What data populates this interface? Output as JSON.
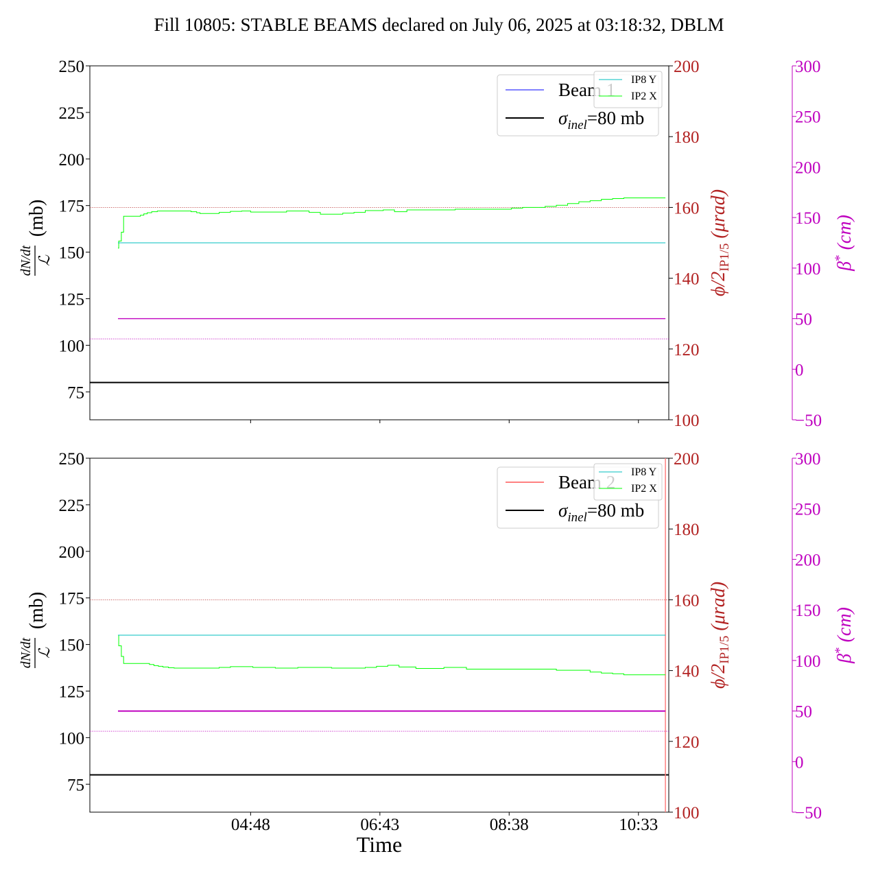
{
  "title": "Fill 10805: STABLE BEAMS declared on July 06, 2025 at 03:18:32, DBLM",
  "colors": {
    "beam1": "#0000ff",
    "beam2": "#ff0000",
    "sigma_line": "#000000",
    "ip8_y": "#00bfbf",
    "ip2_x": "#00ff00",
    "crossing_angle": "#b22222",
    "beta_star": "#bf00bf",
    "beam_dump_marker": "#ff7f7f"
  },
  "chart_data": [
    {
      "type": "line",
      "panel": "top",
      "ylabel_parts": [
        "dN/dt",
        "ℒ",
        "(mb)"
      ],
      "ylim": [
        60,
        250
      ],
      "yticks": [
        75,
        100,
        125,
        150,
        175,
        200,
        225,
        250
      ],
      "right_axis_1": {
        "label_parts": [
          "ϕ/2",
          "IP1/5",
          "(μrad)"
        ],
        "ylim": [
          100,
          200
        ],
        "yticks": [
          100,
          120,
          140,
          160,
          180,
          200
        ]
      },
      "right_axis_2": {
        "label_parts": [
          "β",
          "*",
          "(cm)"
        ],
        "ylim": [
          -50,
          300
        ],
        "yticks": [
          -50,
          0,
          50,
          100,
          150,
          200,
          250,
          300
        ]
      },
      "legend_main": [
        {
          "label": "Beam 1",
          "color_key": "beam1"
        },
        {
          "label_parts": [
            "σ",
            "inel",
            "=80 mb"
          ],
          "color_key": "sigma_line"
        }
      ],
      "legend_small": [
        {
          "label": "IP8 Y",
          "color_key": "ip8_y"
        },
        {
          "label": "IP2 X",
          "color_key": "ip2_x"
        }
      ],
      "sigma_inel_mb": 80,
      "series": [
        {
          "name": "IP2 X",
          "axis": "right_axis_1",
          "x_minutes": [
            0,
            0.7,
            3,
            5,
            18,
            20,
            23,
            26,
            30,
            35,
            40,
            45,
            50,
            60,
            65,
            70,
            73,
            80,
            90,
            100,
            110,
            112,
            118,
            125,
            135,
            140,
            150,
            160,
            170,
            180,
            190,
            200,
            210,
            220,
            230,
            236,
            240,
            246,
            250,
            257,
            265,
            270,
            280,
            290,
            300,
            310,
            320,
            328,
            330,
            340,
            350,
            360,
            370,
            380,
            390,
            400,
            410,
            420,
            430,
            440,
            450,
            460,
            470,
            480,
            487
          ],
          "values": [
            148.5,
            150.5,
            153.0,
            157.5,
            157.5,
            157.8,
            158.2,
            158.5,
            158.8,
            159.0,
            159.0,
            159.0,
            159.0,
            159.0,
            158.8,
            158.5,
            158.3,
            158.3,
            158.6,
            158.9,
            159.0,
            159.0,
            158.7,
            158.7,
            158.7,
            158.7,
            159.0,
            159.0,
            158.6,
            158.1,
            158.1,
            158.4,
            158.6,
            159.1,
            159.1,
            159.3,
            159.3,
            158.8,
            158.8,
            159.3,
            159.3,
            159.3,
            159.3,
            159.3,
            159.5,
            159.5,
            159.5,
            159.5,
            159.5,
            159.5,
            159.8,
            160.0,
            160.0,
            160.3,
            160.6,
            161.1,
            161.6,
            161.9,
            162.3,
            162.5,
            162.7,
            162.7,
            162.7,
            162.7,
            162.7
          ]
        },
        {
          "name": "IP8 Y",
          "axis": "right_axis_1",
          "x_minutes": [
            0,
            487
          ],
          "values": [
            150.0,
            150.0
          ]
        },
        {
          "name": "β*",
          "axis": "right_axis_2",
          "x_minutes": [
            0,
            487
          ],
          "values": [
            50,
            50
          ]
        }
      ],
      "reference_lines": [
        {
          "axis": "right_axis_1",
          "value": 160,
          "style": "dotted",
          "color_key": "crossing_angle"
        },
        {
          "axis": "right_axis_2",
          "value": 30,
          "style": "dotted",
          "color_key": "beta_star"
        }
      ]
    },
    {
      "type": "line",
      "panel": "bottom",
      "ylabel_parts": [
        "dN/dt",
        "ℒ",
        "(mb)"
      ],
      "ylim": [
        60,
        250
      ],
      "yticks": [
        75,
        100,
        125,
        150,
        175,
        200,
        225,
        250
      ],
      "xlabel": "Time",
      "x_tick_labels": [
        "04:48",
        "06:43",
        "08:38",
        "10:33"
      ],
      "x_tick_minutes": [
        118,
        233,
        348,
        463
      ],
      "x_range_minutes": [
        -25,
        490
      ],
      "right_axis_1": {
        "label_parts": [
          "ϕ/2",
          "IP1/5",
          "(μrad)"
        ],
        "ylim": [
          100,
          200
        ],
        "yticks": [
          100,
          120,
          140,
          160,
          180,
          200
        ]
      },
      "right_axis_2": {
        "label_parts": [
          "β",
          "*",
          "(cm)"
        ],
        "ylim": [
          -50,
          300
        ],
        "yticks": [
          -50,
          0,
          50,
          100,
          150,
          200,
          250,
          300
        ]
      },
      "legend_main": [
        {
          "label": "Beam 2",
          "color_key": "beam2"
        },
        {
          "label_parts": [
            "σ",
            "inel",
            "=80 mb"
          ],
          "color_key": "sigma_line"
        }
      ],
      "legend_small": [
        {
          "label": "IP8 Y",
          "color_key": "ip8_y"
        },
        {
          "label": "IP2 X",
          "color_key": "ip2_x"
        }
      ],
      "sigma_inel_mb": 80,
      "beam_dump_minute": 487,
      "series": [
        {
          "name": "IP2 X",
          "axis": "right_axis_1",
          "x_minutes": [
            0,
            0.7,
            3,
            5,
            25,
            28,
            32,
            36,
            40,
            45,
            50,
            60,
            70,
            80,
            90,
            100,
            110,
            120,
            130,
            140,
            150,
            160,
            170,
            180,
            190,
            200,
            210,
            220,
            230,
            236,
            240,
            246,
            250,
            257,
            265,
            270,
            280,
            290,
            300,
            310,
            320,
            330,
            340,
            350,
            360,
            370,
            380,
            390,
            400,
            410,
            420,
            430,
            440,
            450,
            460,
            470,
            480,
            487
          ],
          "values": [
            150.0,
            147.0,
            144.0,
            142.0,
            142.0,
            141.7,
            141.4,
            141.2,
            141.0,
            140.8,
            140.7,
            140.7,
            140.7,
            140.7,
            140.9,
            141.1,
            141.1,
            140.9,
            140.9,
            140.7,
            140.7,
            140.9,
            140.9,
            140.9,
            140.7,
            140.7,
            140.7,
            140.9,
            141.2,
            141.2,
            141.5,
            141.5,
            141.0,
            141.0,
            140.6,
            140.6,
            140.6,
            140.9,
            140.9,
            140.4,
            140.4,
            140.4,
            140.4,
            140.4,
            140.4,
            140.4,
            140.4,
            140.1,
            140.1,
            140.1,
            139.6,
            139.3,
            139.1,
            138.8,
            138.8,
            138.8,
            138.8,
            138.8
          ]
        },
        {
          "name": "IP8 Y",
          "axis": "right_axis_1",
          "x_minutes": [
            0,
            487
          ],
          "values": [
            150.0,
            150.0
          ]
        },
        {
          "name": "β*",
          "axis": "right_axis_2",
          "x_minutes": [
            0,
            487
          ],
          "values": [
            50,
            50
          ]
        }
      ],
      "reference_lines": [
        {
          "axis": "right_axis_1",
          "value": 160,
          "style": "dotted",
          "color_key": "crossing_angle"
        },
        {
          "axis": "right_axis_2",
          "value": 30,
          "style": "dotted",
          "color_key": "beta_star"
        }
      ]
    }
  ]
}
